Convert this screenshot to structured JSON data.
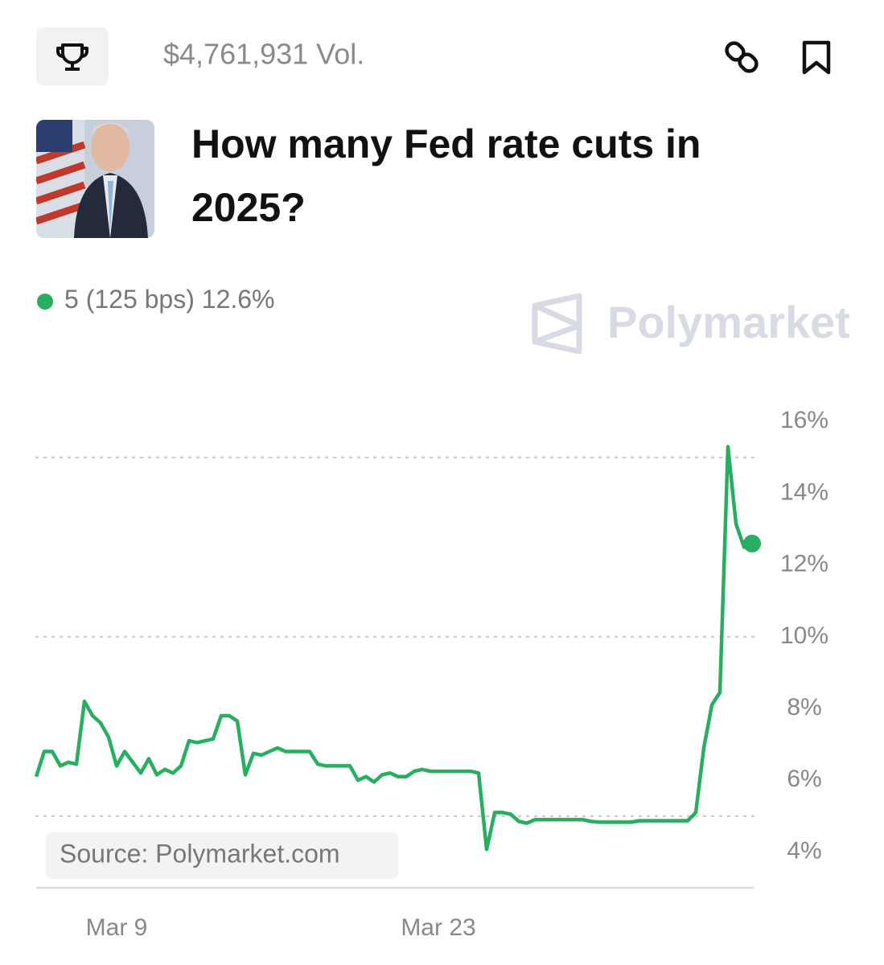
{
  "header": {
    "volume": "$4,761,931 Vol.",
    "title_lines": [
      "How many Fed rate cuts in",
      "2025?"
    ]
  },
  "watermark": "Polymarket",
  "source": "Source: Polymarket.com",
  "chart_data": {
    "type": "line",
    "categories": [
      null,
      null,
      null,
      null,
      null,
      null,
      null,
      null,
      null,
      null,
      "Mar 9",
      null,
      null,
      null,
      null,
      null,
      null,
      null,
      null,
      null,
      null,
      null,
      null,
      null,
      null,
      null,
      null,
      null,
      null,
      null,
      null,
      null,
      null,
      null,
      null,
      null,
      null,
      null,
      null,
      null,
      null,
      null,
      null,
      null,
      null,
      null,
      null,
      null,
      null,
      null,
      "Mar 23",
      null,
      null,
      null,
      null,
      null,
      null,
      null,
      null,
      null,
      null,
      null,
      null,
      null,
      null,
      null,
      null,
      null,
      null,
      null,
      null,
      null,
      null,
      null,
      null,
      null,
      null,
      null,
      null,
      null,
      null,
      null,
      null,
      null,
      null,
      null,
      null,
      null,
      null,
      null
    ],
    "series": [
      {
        "name": "5 (125 bps)",
        "current_label": "12.6%",
        "color": "#27ae60",
        "values": [
          6.1,
          6.8,
          6.8,
          6.4,
          6.5,
          6.45,
          8.2,
          7.8,
          7.6,
          7.2,
          6.4,
          6.8,
          6.5,
          6.2,
          6.6,
          6.15,
          6.3,
          6.2,
          6.4,
          7.1,
          7.05,
          7.1,
          7.15,
          7.8,
          7.8,
          7.65,
          6.15,
          6.75,
          6.7,
          6.8,
          6.9,
          6.8,
          6.8,
          6.8,
          6.8,
          6.45,
          6.4,
          6.4,
          6.4,
          6.4,
          6.0,
          6.1,
          5.95,
          6.15,
          6.2,
          6.1,
          6.1,
          6.25,
          6.3,
          6.25,
          6.25,
          6.25,
          6.25,
          6.25,
          6.25,
          6.2,
          4.07,
          5.1,
          5.1,
          5.05,
          4.85,
          4.8,
          4.9,
          4.9,
          4.9,
          4.9,
          4.9,
          4.9,
          4.9,
          4.85,
          4.83,
          4.83,
          4.83,
          4.83,
          4.83,
          4.87,
          4.87,
          4.87,
          4.87,
          4.87,
          4.87,
          4.87,
          5.1,
          6.9,
          8.1,
          8.45,
          15.3,
          13.15,
          12.5,
          12.6
        ]
      }
    ],
    "ylim": [
      3,
      16.5
    ],
    "yticks": [
      {
        "value": 4,
        "label": "4%"
      },
      {
        "value": 6,
        "label": "6%"
      },
      {
        "value": 8,
        "label": "8%"
      },
      {
        "value": 10,
        "label": "10%"
      },
      {
        "value": 12,
        "label": "12%"
      },
      {
        "value": 14,
        "label": "14%"
      },
      {
        "value": 16,
        "label": "16%"
      }
    ],
    "ygrid": [
      5,
      10,
      15
    ]
  }
}
